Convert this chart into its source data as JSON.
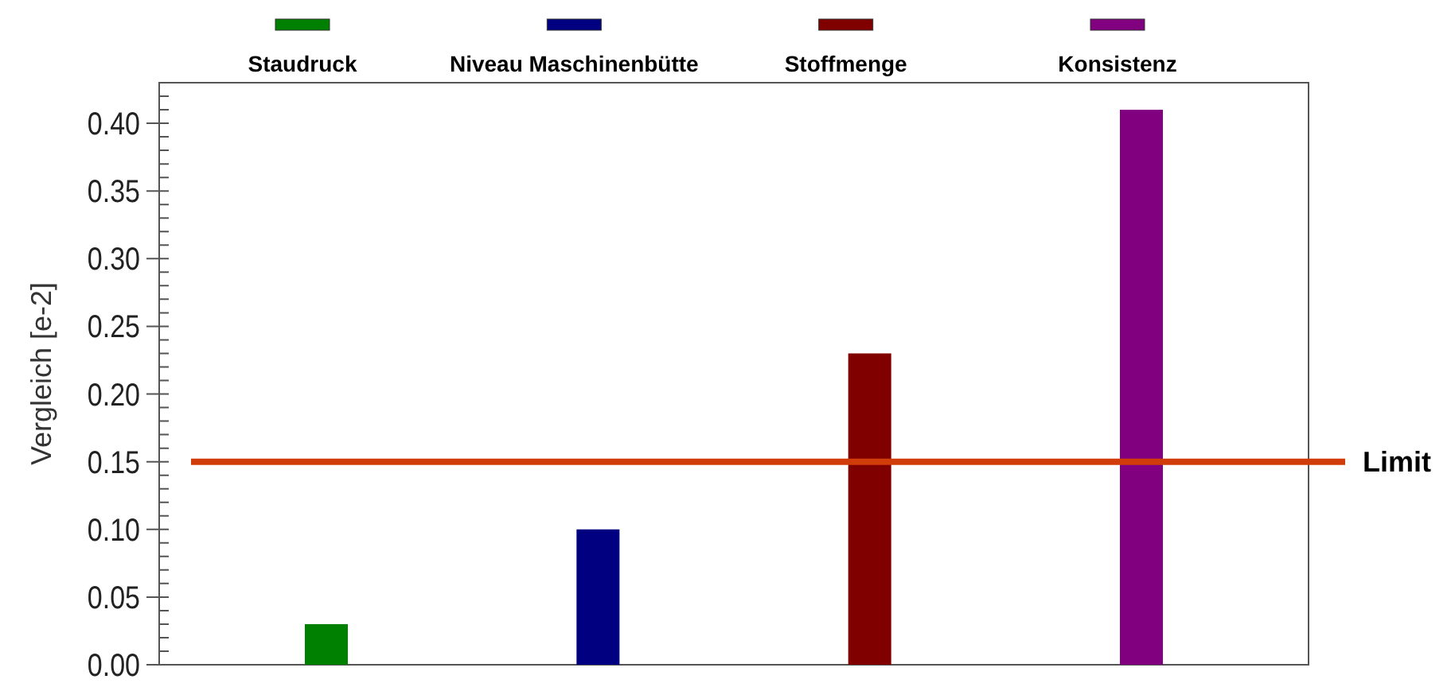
{
  "chart_data": {
    "type": "bar",
    "ylabel": "Vergleich [e-2]",
    "categories": [
      null,
      null,
      null,
      null
    ],
    "series": [
      {
        "name": "Staudruck",
        "color": "#008000",
        "values": [
          0.03,
          null,
          null,
          null
        ]
      },
      {
        "name": "Niveau Maschinenbütte",
        "color": "#000080",
        "values": [
          null,
          0.1,
          null,
          null
        ]
      },
      {
        "name": "Stoffmenge",
        "color": "#800000",
        "values": [
          null,
          null,
          0.23,
          null
        ]
      },
      {
        "name": "Konsistenz",
        "color": "#800080",
        "values": [
          null,
          null,
          null,
          0.41
        ]
      }
    ],
    "ylim": [
      0,
      0.43
    ],
    "yticks": [
      {
        "value": 0,
        "label": "0.00"
      },
      {
        "value": 0.05,
        "label": "0.05"
      },
      {
        "value": 0.1,
        "label": "0.10"
      },
      {
        "value": 0.15,
        "label": "0.15"
      },
      {
        "value": 0.2,
        "label": "0.20"
      },
      {
        "value": 0.25,
        "label": "0.25"
      },
      {
        "value": 0.3,
        "label": "0.30"
      },
      {
        "value": 0.35,
        "label": "0.35"
      },
      {
        "value": 0.4,
        "label": "0.40"
      }
    ],
    "ref_lines": [
      {
        "axis": "y",
        "value": 0.15,
        "label": "Limit",
        "color": "#d03c0a"
      }
    ],
    "legend": "top",
    "grid": false
  }
}
